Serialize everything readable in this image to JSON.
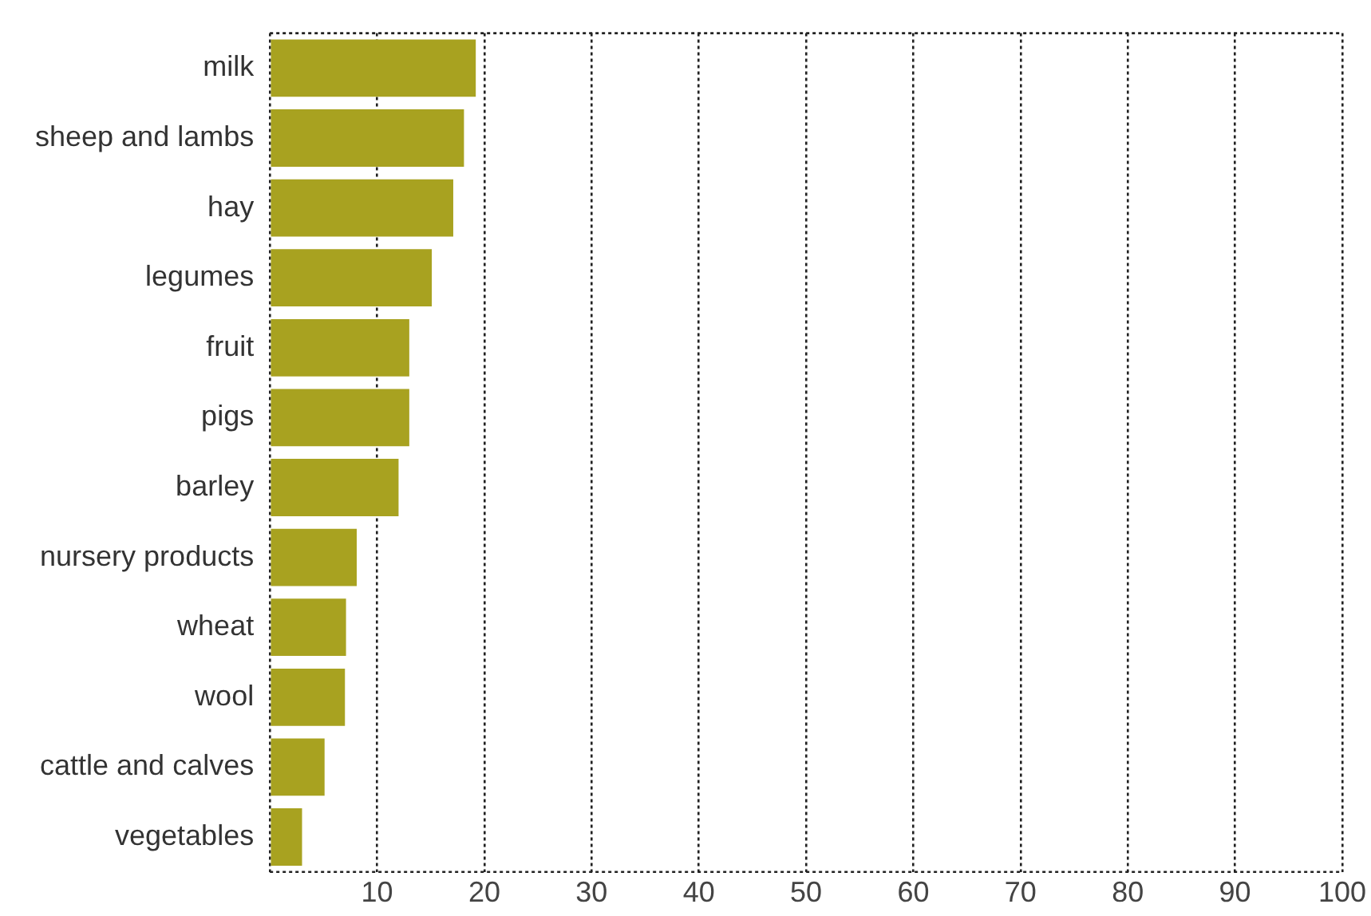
{
  "chart_data": {
    "type": "bar",
    "orientation": "horizontal",
    "categories": [
      "milk",
      "sheep and lambs",
      "hay",
      "legumes",
      "fruit",
      "pigs",
      "barley",
      "nursery products",
      "wheat",
      "wool",
      "cattle and calves",
      "vegetables"
    ],
    "values": [
      19.2,
      18.1,
      17.1,
      15.1,
      13,
      13,
      12,
      8.1,
      7.1,
      7,
      5.1,
      3
    ],
    "color": "#a8a220",
    "xlim": [
      0,
      100
    ],
    "xticks": [
      {
        "value": 0,
        "label": null
      },
      10,
      20,
      30,
      40,
      50,
      60,
      70,
      80,
      90,
      100
    ],
    "grid": "x",
    "legend": false
  }
}
